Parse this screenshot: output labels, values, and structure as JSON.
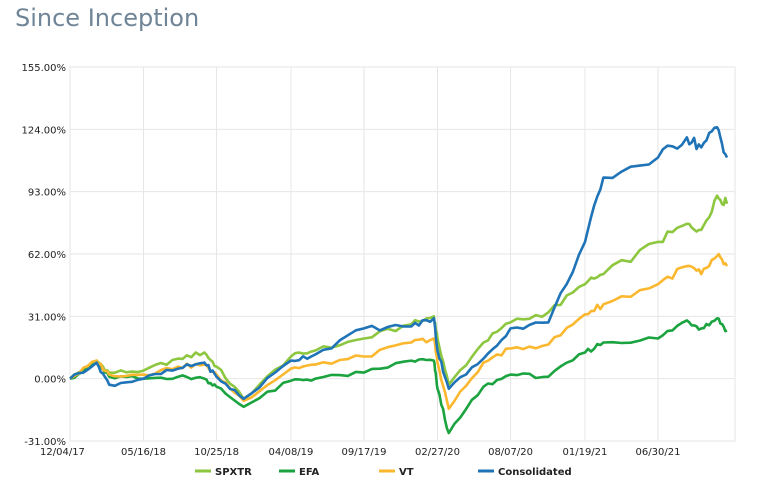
{
  "title": "Since Inception",
  "chart_data": {
    "type": "line",
    "title": "Since Inception",
    "xlabel": "",
    "ylabel": "",
    "x_tick_labels": [
      "12/04/17",
      "05/16/18",
      "10/25/18",
      "04/08/19",
      "09/17/19",
      "02/27/20",
      "08/07/20",
      "01/19/21",
      "06/30/21"
    ],
    "y_tick_labels": [
      "155.00%",
      "124.00%",
      "93.00%",
      "62.00%",
      "31.00%",
      "0.00%",
      "-31.00%"
    ],
    "ylim": [
      -31,
      155
    ],
    "grid": true,
    "legend_position": "bottom",
    "x": [
      "12/04/17",
      "02/01/18",
      "03/01/18",
      "05/16/18",
      "08/01/18",
      "09/28/18",
      "10/25/18",
      "12/24/18",
      "04/08/19",
      "06/01/19",
      "09/17/19",
      "12/31/19",
      "02/19/20",
      "02/27/20",
      "03/23/20",
      "06/08/20",
      "08/07/20",
      "10/30/20",
      "01/19/21",
      "03/01/21",
      "06/30/21",
      "09/02/21",
      "10/04/21",
      "11/08/21",
      "11/30/21"
    ],
    "series": [
      {
        "name": "SPXTR",
        "color": "#8dc63f",
        "values": [
          0,
          9,
          3,
          4,
          10,
          13,
          6,
          -10,
          11,
          14,
          20,
          27,
          31,
          20,
          -3,
          18,
          28,
          33,
          47,
          52,
          68,
          77,
          74,
          91,
          87
        ]
      },
      {
        "name": "EFA",
        "color": "#1aa33f",
        "values": [
          0,
          8,
          1,
          0,
          1,
          0,
          -4,
          -14,
          -1,
          0,
          3,
          9,
          9,
          -5,
          -27,
          -4,
          2,
          1,
          13,
          18,
          20,
          29,
          25,
          30,
          24
        ]
      },
      {
        "name": "VT",
        "color": "#fbb82f",
        "values": [
          0,
          9,
          2,
          2,
          6,
          7,
          2,
          -11,
          5,
          7,
          11,
          18,
          20,
          8,
          -15,
          8,
          15,
          17,
          32,
          37,
          47,
          56,
          52,
          61,
          56
        ]
      },
      {
        "name": "Consolidated",
        "color": "#1f73b7",
        "values": [
          0,
          8,
          -3,
          0,
          5,
          8,
          1,
          -10,
          9,
          12,
          25,
          26,
          30,
          14,
          -5,
          10,
          25,
          28,
          68,
          100,
          110,
          120,
          115,
          125,
          110
        ]
      }
    ]
  }
}
